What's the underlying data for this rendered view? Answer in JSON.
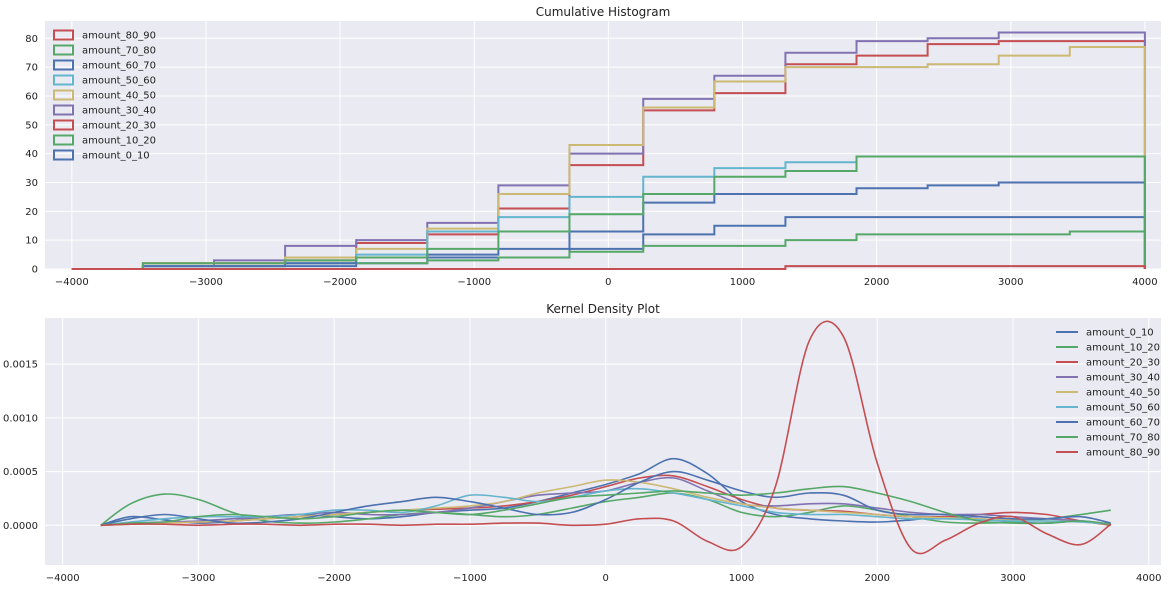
{
  "colors": {
    "amount_0_10": "#4c72b0",
    "amount_10_20": "#55a868",
    "amount_20_30": "#c44e52",
    "amount_30_40": "#8172b2",
    "amount_40_50": "#ccb974",
    "amount_50_60": "#64b5cd",
    "amount_60_70": "#4c72b0",
    "amount_70_80": "#55a868",
    "amount_80_90": "#c44e52"
  },
  "chart_data": [
    {
      "type": "histogram",
      "cumulative": true,
      "title": "Cumulative Histogram",
      "xlim": [
        -4200,
        4120
      ],
      "ylim": [
        0,
        86
      ],
      "grid": true,
      "legend_position": "top-left",
      "xticks": [
        -4000,
        -3000,
        -2000,
        -1000,
        0,
        1000,
        2000,
        3000,
        4000
      ],
      "yticks": [
        0,
        10,
        20,
        30,
        40,
        50,
        60,
        70,
        80
      ],
      "bin_edges": [
        -4000,
        -3470,
        -2940,
        -2410,
        -1880,
        -1350,
        -820,
        -290,
        260,
        790,
        1320,
        1850,
        2380,
        2910,
        3440,
        4000
      ],
      "legend_order": [
        "amount_80_90",
        "amount_70_80",
        "amount_60_70",
        "amount_50_60",
        "amount_40_50",
        "amount_30_40",
        "amount_20_30",
        "amount_10_20",
        "amount_0_10"
      ],
      "series": [
        {
          "name": "amount_0_10",
          "values": [
            0,
            1,
            1,
            1,
            2,
            4,
            4,
            7,
            12,
            15,
            18,
            18,
            18,
            18,
            18
          ]
        },
        {
          "name": "amount_10_20",
          "values": [
            0,
            1,
            1,
            2,
            2,
            3,
            4,
            6,
            8,
            8,
            10,
            12,
            12,
            12,
            13
          ]
        },
        {
          "name": "amount_20_30",
          "values": [
            0,
            2,
            2,
            3,
            9,
            12,
            21,
            36,
            55,
            61,
            71,
            74,
            78,
            79,
            79
          ]
        },
        {
          "name": "amount_30_40",
          "values": [
            0,
            1,
            3,
            8,
            10,
            16,
            29,
            40,
            59,
            67,
            75,
            79,
            80,
            82,
            82
          ]
        },
        {
          "name": "amount_40_50",
          "values": [
            0,
            2,
            2,
            4,
            7,
            14,
            26,
            43,
            56,
            65,
            70,
            70,
            71,
            74,
            77
          ]
        },
        {
          "name": "amount_50_60",
          "values": [
            0,
            1,
            1,
            2,
            5,
            13,
            18,
            25,
            32,
            35,
            37,
            39,
            39,
            39,
            39
          ]
        },
        {
          "name": "amount_60_70",
          "values": [
            0,
            1,
            1,
            2,
            4,
            5,
            7,
            13,
            23,
            26,
            26,
            28,
            29,
            30,
            30
          ]
        },
        {
          "name": "amount_70_80",
          "values": [
            0,
            2,
            2,
            3,
            4,
            7,
            13,
            19,
            26,
            32,
            34,
            39,
            39,
            39,
            39
          ]
        },
        {
          "name": "amount_80_90",
          "values": [
            0,
            0,
            0,
            0,
            0,
            0,
            0,
            0,
            0,
            0,
            1,
            1,
            1,
            1,
            1
          ]
        }
      ]
    },
    {
      "type": "line",
      "title": "Kernel Density Plot",
      "xlim": [
        -4130,
        4090
      ],
      "ylim": [
        -0.00037,
        0.00193
      ],
      "grid": true,
      "legend_position": "top-right",
      "xticks": [
        -4000,
        -3000,
        -2000,
        -1000,
        0,
        1000,
        2000,
        3000,
        4000
      ],
      "yticks": [
        "0.0000",
        "0.0005",
        "0.0010",
        "0.0015"
      ],
      "yticks_values": [
        0,
        0.0005,
        0.001,
        0.0015
      ],
      "x": [
        -3720,
        -3500,
        -3250,
        -3000,
        -2750,
        -2500,
        -2250,
        -2000,
        -1750,
        -1500,
        -1250,
        -1000,
        -750,
        -500,
        -250,
        0,
        250,
        500,
        750,
        1000,
        1250,
        1500,
        1750,
        2000,
        2250,
        2500,
        2750,
        3000,
        3250,
        3500,
        3720
      ],
      "series": [
        {
          "name": "amount_0_10",
          "values": [
            0.0,
            8e-05,
            5e-05,
            2e-05,
            4e-05,
            8e-05,
            0.0001,
            8e-05,
            6e-05,
            8e-05,
            0.00012,
            0.00014,
            0.00016,
            0.00022,
            0.0003,
            0.00038,
            0.00048,
            0.00062,
            0.00048,
            0.00022,
            0.0001,
            6e-05,
            4e-05,
            3e-05,
            5e-05,
            8e-05,
            6e-05,
            3e-05,
            2e-05,
            4e-05,
            1e-05
          ]
        },
        {
          "name": "amount_10_20",
          "values": [
            0.0,
            0.0002,
            0.00029,
            0.00024,
            0.00012,
            4e-05,
            2e-05,
            3e-05,
            6e-05,
            0.0001,
            0.00012,
            0.0001,
            8e-05,
            0.0001,
            0.00016,
            0.00022,
            0.00026,
            0.0003,
            0.00024,
            0.00012,
            8e-05,
            0.00012,
            0.00018,
            0.00014,
            8e-05,
            3e-05,
            2e-05,
            3e-05,
            6e-05,
            0.0001,
            0.00014
          ]
        },
        {
          "name": "amount_20_30",
          "values": [
            0.0,
            1e-05,
            2e-05,
            3e-05,
            4e-05,
            6e-05,
            8e-05,
            0.0001,
            0.00012,
            0.00014,
            0.00015,
            0.00016,
            0.00018,
            0.00022,
            0.00028,
            0.00036,
            0.00044,
            0.00046,
            0.00036,
            0.00024,
            0.00016,
            0.00014,
            0.00013,
            0.0001,
            8e-05,
            8e-05,
            0.0001,
            0.00012,
            0.0001,
            4e-05,
            0.0
          ]
        },
        {
          "name": "amount_30_40",
          "values": [
            0.0,
            2e-05,
            3e-05,
            4e-05,
            6e-05,
            8e-05,
            0.0001,
            0.00012,
            0.0001,
            0.0001,
            0.00012,
            0.00016,
            0.00022,
            0.00028,
            0.0003,
            0.00032,
            0.0004,
            0.00044,
            0.00032,
            0.0002,
            0.00018,
            0.0002,
            0.0002,
            0.00016,
            0.00012,
            0.0001,
            0.0001,
            8e-05,
            6e-05,
            4e-05,
            1e-05
          ]
        },
        {
          "name": "amount_40_50",
          "values": [
            0.0,
            1e-05,
            2e-05,
            3e-05,
            4e-05,
            6e-05,
            8e-05,
            0.0001,
            0.00012,
            0.00014,
            0.00016,
            0.00018,
            0.00022,
            0.0003,
            0.00036,
            0.00042,
            0.0004,
            0.00034,
            0.00026,
            0.0002,
            0.00016,
            0.00014,
            0.00012,
            0.0001,
            8e-05,
            7e-05,
            6e-05,
            5e-05,
            4e-05,
            3e-05,
            1e-05
          ]
        },
        {
          "name": "amount_50_60",
          "values": [
            0.0,
            3e-05,
            6e-05,
            8e-05,
            8e-05,
            8e-05,
            0.0001,
            0.00014,
            0.00014,
            0.00012,
            0.00018,
            0.00028,
            0.00026,
            0.00022,
            0.00026,
            0.00032,
            0.00034,
            0.0003,
            0.00024,
            0.00018,
            0.00012,
            0.0001,
            0.0001,
            8e-05,
            6e-05,
            6e-05,
            5e-05,
            4e-05,
            4e-05,
            3e-05,
            1e-05
          ]
        },
        {
          "name": "amount_60_70",
          "values": [
            0.0,
            6e-05,
            0.0001,
            6e-05,
            2e-05,
            3e-05,
            6e-05,
            0.00012,
            0.00018,
            0.00022,
            0.00026,
            0.00022,
            0.00016,
            0.0001,
            0.00012,
            0.00024,
            0.0004,
            0.0005,
            0.00042,
            0.00032,
            0.00026,
            0.0003,
            0.00028,
            0.00014,
            0.0001,
            0.0001,
            8e-05,
            6e-05,
            6e-05,
            8e-05,
            2e-05
          ]
        },
        {
          "name": "amount_70_80",
          "values": [
            0.0,
            2e-05,
            3e-05,
            8e-05,
            0.0001,
            8e-05,
            6e-05,
            8e-05,
            0.00012,
            0.00014,
            0.00012,
            0.0001,
            0.00014,
            0.0002,
            0.00026,
            0.00028,
            0.0003,
            0.00032,
            0.0003,
            0.00028,
            0.0003,
            0.00034,
            0.00036,
            0.0003,
            0.00022,
            0.00012,
            4e-05,
            2e-05,
            2e-05,
            4e-05,
            1e-05
          ]
        },
        {
          "name": "amount_80_90",
          "values": [
            0.0,
            1e-05,
            1e-05,
            0.0,
            1e-05,
            1e-05,
            0.0,
            1e-05,
            1e-05,
            0.0,
            1e-05,
            1e-05,
            2e-05,
            2e-05,
            0.0,
            1e-05,
            6e-05,
            4e-05,
            -0.00015,
            -0.0002,
            0.00036,
            0.00172,
            0.00176,
            0.00058,
            -0.00022,
            -0.00014,
            2e-05,
            8e-05,
            -8e-05,
            -0.00018,
            1e-05
          ]
        }
      ]
    }
  ]
}
